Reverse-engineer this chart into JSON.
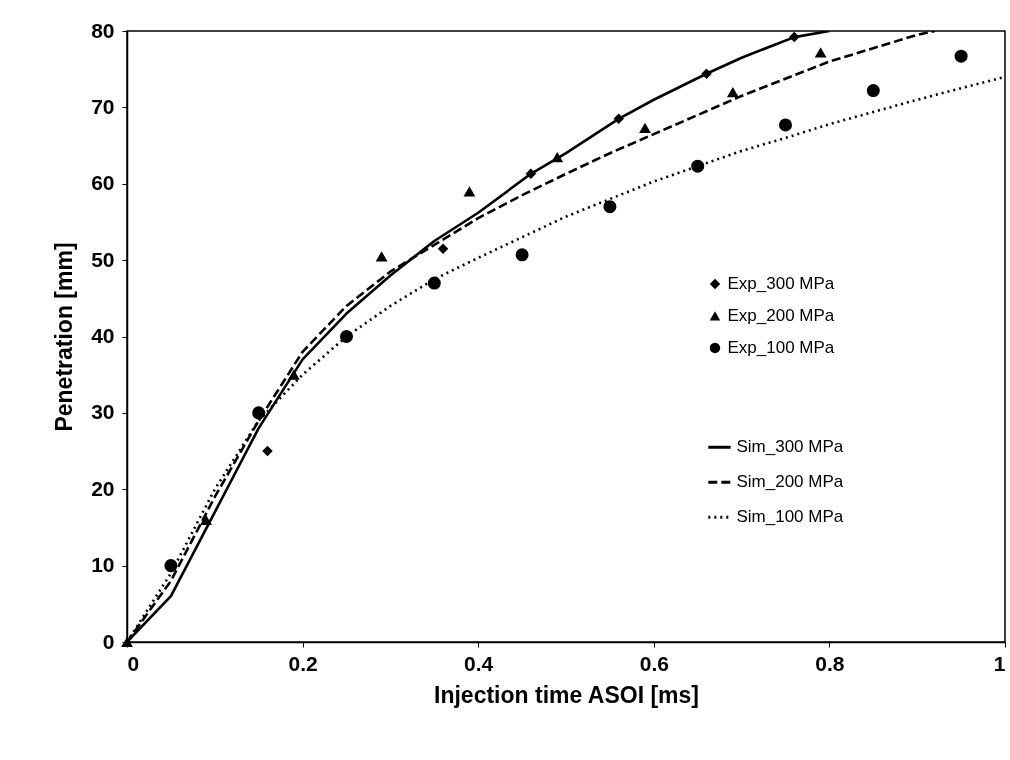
{
  "chart_data": {
    "type": "scatter",
    "xlabel": "Injection time ASOI [ms]",
    "ylabel": "Penetration [mm]",
    "xlim": [
      0,
      1
    ],
    "xticks": [
      0,
      0.2,
      0.4,
      0.6,
      0.8,
      1
    ],
    "ylim": [
      0,
      80
    ],
    "yticks": [
      0,
      10,
      20,
      30,
      40,
      50,
      60,
      70,
      80
    ],
    "grid": false,
    "legend": "right",
    "series": [
      {
        "name": "Exp_300 MPa",
        "marker": "diamond",
        "color": "#000000",
        "x": [
          0.16,
          0.36,
          0.46,
          0.56,
          0.66,
          0.76
        ],
        "values": [
          25,
          51.5,
          61.3,
          68.5,
          74.4,
          79.2
        ]
      },
      {
        "name": "Exp_200 MPa",
        "marker": "triangle",
        "color": "#000000",
        "x": [
          0,
          0.09,
          0.19,
          0.29,
          0.39,
          0.49,
          0.59,
          0.69,
          0.79
        ],
        "values": [
          0,
          16,
          35,
          50.5,
          59,
          63.5,
          67.3,
          72,
          77.2
        ]
      },
      {
        "name": "Exp_100 MPa",
        "marker": "circle",
        "color": "#000000",
        "x": [
          0.05,
          0.15,
          0.25,
          0.35,
          0.45,
          0.55,
          0.65,
          0.75,
          0.85,
          0.95
        ],
        "values": [
          10,
          30,
          40,
          47,
          50.7,
          57,
          62.3,
          67.7,
          72.2,
          76.7
        ]
      },
      {
        "name": "Sim_300 MPa",
        "type": "line",
        "line_style": "solid",
        "color": "#000000",
        "x": [
          0,
          0.05,
          0.1,
          0.15,
          0.2,
          0.25,
          0.3,
          0.35,
          0.4,
          0.46,
          0.5,
          0.56,
          0.6,
          0.66,
          0.7,
          0.76,
          0.8
        ],
        "values": [
          0,
          6,
          17,
          28,
          37,
          43,
          48,
          52.5,
          56.2,
          61.3,
          64,
          68.5,
          71,
          74.4,
          76.5,
          79.2,
          80
        ]
      },
      {
        "name": "Sim_200 MPa",
        "type": "line",
        "line_style": "dashed",
        "color": "#000000",
        "x": [
          0,
          0.05,
          0.1,
          0.15,
          0.2,
          0.25,
          0.3,
          0.35,
          0.4,
          0.45,
          0.5,
          0.55,
          0.6,
          0.7,
          0.8,
          0.9,
          0.92
        ],
        "values": [
          0,
          8,
          19,
          29,
          38,
          44,
          48.5,
          52,
          55.5,
          58.5,
          61.3,
          64,
          66.5,
          71.5,
          76,
          79.5,
          80
        ]
      },
      {
        "name": "Sim_100 MPa",
        "type": "line",
        "line_style": "dotted",
        "color": "#000000",
        "x": [
          0,
          0.05,
          0.1,
          0.15,
          0.2,
          0.25,
          0.3,
          0.35,
          0.4,
          0.45,
          0.5,
          0.55,
          0.6,
          0.65,
          0.7,
          0.75,
          0.8,
          0.9,
          1
        ],
        "values": [
          0,
          9,
          20,
          29,
          35,
          40,
          44,
          47.5,
          50.3,
          53,
          55.7,
          58,
          60.3,
          62.3,
          64.3,
          66,
          67.8,
          71,
          74
        ]
      }
    ]
  }
}
